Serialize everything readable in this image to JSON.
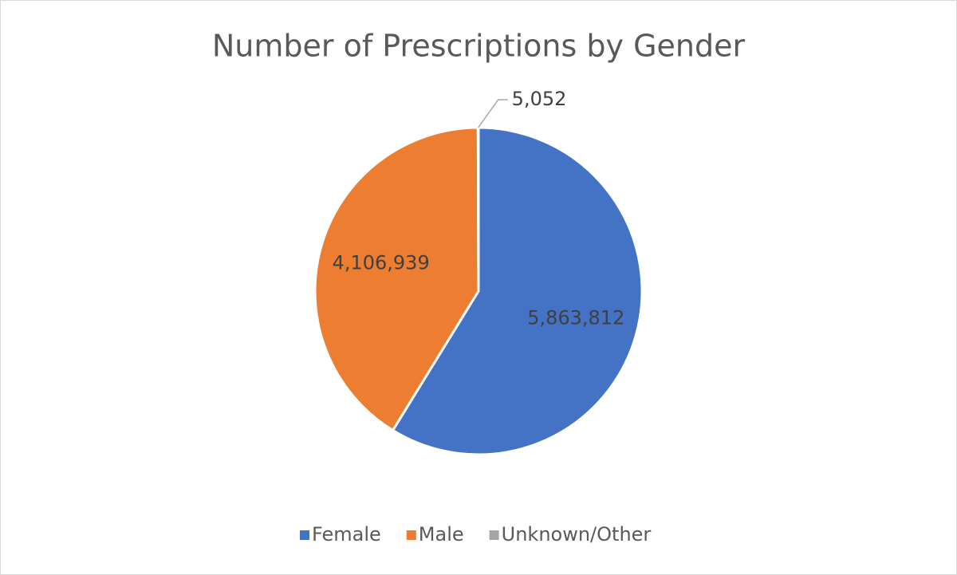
{
  "chart_data": {
    "type": "pie",
    "title": "Number of Prescriptions by Gender",
    "categories": [
      "Female",
      "Male",
      "Unknown/Other"
    ],
    "values": [
      5863812,
      4106939,
      5052
    ],
    "value_labels": [
      "5,863,812",
      "4,106,939",
      "5,052"
    ],
    "colors": [
      "#4472c4",
      "#ed7d31",
      "#a5a5a5"
    ],
    "legend": "bottom"
  }
}
